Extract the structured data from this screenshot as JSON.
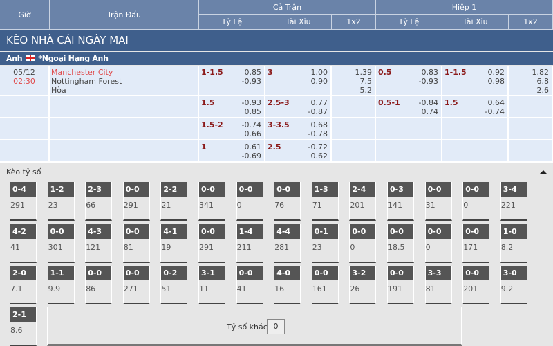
{
  "header": {
    "gio": "Giờ",
    "tran_dau": "Trận Đấu",
    "ca_tran": "Cả Trận",
    "hiep1": "Hiệp 1",
    "ty_le": "Tỷ Lệ",
    "tai_xiu": "Tài Xỉu",
    "x12": "1x2"
  },
  "title": "KÈO NHÀ CÁI NGÀY MAI",
  "league": {
    "country": "Anh",
    "name": "*Ngoại Hạng Anh"
  },
  "match": {
    "date": "05/12",
    "time": "02:30",
    "home": "Manchester City",
    "away": "Nottingham Forest",
    "draw": "Hòa"
  },
  "rows": [
    {
      "ft_hdp": "1-1.5",
      "ft_hdp_o": [
        "0.85",
        "-0.93"
      ],
      "ft_ou": "3",
      "ft_ou_o": [
        "1.00",
        "0.90"
      ],
      "ft_1x2": [
        "1.39",
        "7.5",
        "5.2"
      ],
      "h1_hdp": "0.5",
      "h1_hdp_o": [
        "0.83",
        "-0.93"
      ],
      "h1_ou": "1-1.5",
      "h1_ou_o": [
        "0.92",
        "0.98"
      ],
      "h1_1x2": [
        "1.82",
        "6.8",
        "2.6"
      ]
    },
    {
      "ft_hdp": "1.5",
      "ft_hdp_o": [
        "-0.93",
        "0.85"
      ],
      "ft_ou": "2.5-3",
      "ft_ou_o": [
        "0.77",
        "-0.87"
      ],
      "h1_hdp": "0.5-1",
      "h1_hdp_o": [
        "-0.84",
        "0.74"
      ],
      "h1_ou": "1.5",
      "h1_ou_o": [
        "0.64",
        "-0.74"
      ]
    },
    {
      "ft_hdp": "1.5-2",
      "ft_hdp_o": [
        "-0.74",
        "0.66"
      ],
      "ft_ou": "3-3.5",
      "ft_ou_o": [
        "0.68",
        "-0.78"
      ]
    },
    {
      "ft_hdp": "1",
      "ft_hdp_o": [
        "0.61",
        "-0.69"
      ],
      "ft_ou": "2.5",
      "ft_ou_o": [
        "-0.72",
        "0.62"
      ]
    }
  ],
  "correct_score": {
    "title": "Kèo tỷ số",
    "other_label": "Tỷ số khác",
    "other_value": "0",
    "cards": [
      [
        "0-4",
        "291"
      ],
      [
        "1-2",
        "23"
      ],
      [
        "2-3",
        "66"
      ],
      [
        "0-0",
        "291"
      ],
      [
        "2-2",
        "21"
      ],
      [
        "0-0",
        "341"
      ],
      [
        "0-0",
        "0"
      ],
      [
        "0-0",
        "76"
      ],
      [
        "1-3",
        "71"
      ],
      [
        "2-4",
        "201"
      ],
      [
        "0-3",
        "141"
      ],
      [
        "0-0",
        "31"
      ],
      [
        "0-0",
        "0"
      ],
      [
        "3-4",
        "221"
      ],
      [
        "4-2",
        "41"
      ],
      [
        "0-0",
        "301"
      ],
      [
        "4-3",
        "121"
      ],
      [
        "0-0",
        "81"
      ],
      [
        "4-1",
        "19"
      ],
      [
        "0-0",
        "291"
      ],
      [
        "1-4",
        "211"
      ],
      [
        "4-4",
        "281"
      ],
      [
        "0-1",
        "23"
      ],
      [
        "0-0",
        "0"
      ],
      [
        "0-0",
        "18.5"
      ],
      [
        "0-0",
        "0"
      ],
      [
        "0-0",
        "171"
      ],
      [
        "1-0",
        "8.2"
      ],
      [
        "2-0",
        "7.1"
      ],
      [
        "1-1",
        "9.9"
      ],
      [
        "0-0",
        "86"
      ],
      [
        "0-0",
        "271"
      ],
      [
        "0-2",
        "51"
      ],
      [
        "3-1",
        "11"
      ],
      [
        "0-0",
        "41"
      ],
      [
        "4-0",
        "16"
      ],
      [
        "0-0",
        "161"
      ],
      [
        "3-2",
        "26"
      ],
      [
        "0-0",
        "191"
      ],
      [
        "3-3",
        "81"
      ],
      [
        "0-0",
        "201"
      ],
      [
        "3-0",
        "9.2"
      ],
      [
        "2-1",
        "8.6"
      ]
    ]
  },
  "colors": {
    "header": "#6a83a9",
    "title_bar": "#3f5f8c",
    "row_bg": "#e2ebf8",
    "handicap": "#8b1a1a",
    "home_team": "#e04848"
  }
}
